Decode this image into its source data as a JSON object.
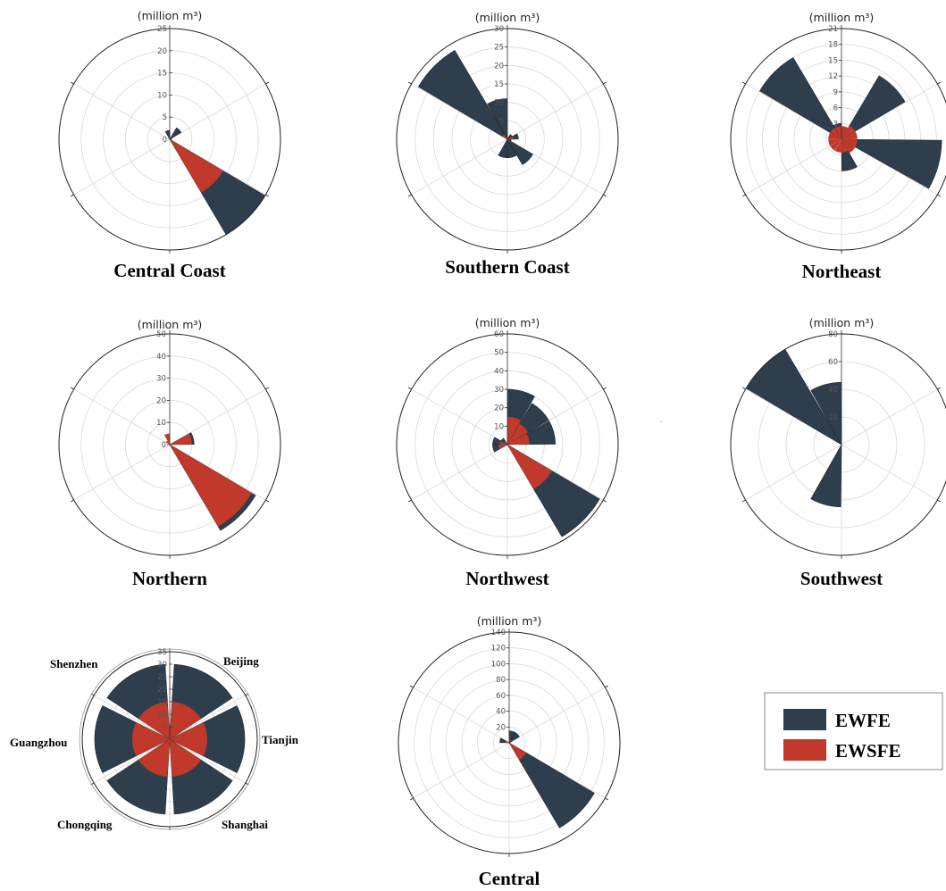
{
  "colors": {
    "ewfe": "#2f3e4d",
    "ewsfe": "#c0392b",
    "grid": "#d9d9d9",
    "frame": "#222222"
  },
  "legend": {
    "items": [
      {
        "label": "EWFE",
        "color": "#2f3e4d"
      },
      {
        "label": "EWSFE",
        "color": "#c0392b"
      }
    ]
  },
  "chart_data": [
    {
      "type": "polar-bar",
      "title": "Central Coast",
      "unit": "(million m³)",
      "rlim": [
        0,
        25
      ],
      "ticks": [
        0,
        5,
        10,
        15,
        20,
        25
      ],
      "series": [
        {
          "name": "EWFE",
          "values": [
            0,
            3,
            0,
            0,
            26,
            0,
            0,
            0,
            0,
            0,
            0,
            2
          ]
        },
        {
          "name": "EWSFE",
          "values": [
            0,
            0,
            0,
            0,
            14,
            0,
            0,
            0,
            0,
            0,
            0,
            0
          ]
        }
      ]
    },
    {
      "type": "polar-bar",
      "title": "Southern Coast",
      "unit": "(million m³)",
      "rlim": [
        0,
        30
      ],
      "ticks": [
        5,
        10,
        15,
        20,
        25,
        30
      ],
      "series": [
        {
          "name": "EWFE",
          "values": [
            0,
            0,
            0,
            0,
            0,
            0,
            0,
            0,
            0,
            0,
            0,
            0
          ]
        },
        {
          "name": "EWFE",
          "values": [
            0,
            1.5,
            3,
            1,
            8,
            5,
            5,
            0,
            0,
            0,
            28,
            11
          ]
        },
        {
          "name": "EWSFE",
          "values": [
            0,
            0,
            1.5,
            0,
            1,
            0,
            0,
            0,
            0,
            0,
            1.5,
            0
          ]
        }
      ]
    },
    {
      "type": "polar-bar",
      "title": "Northeast",
      "unit": "(million m³)",
      "rlim": [
        0,
        21
      ],
      "ticks": [
        3,
        6,
        9,
        12,
        15,
        18,
        21
      ],
      "series": [
        {
          "name": "EWFE",
          "values": [
            0,
            14,
            0,
            19,
            0,
            6,
            0,
            0,
            0,
            0,
            18,
            3
          ]
        },
        {
          "name": "EWSFE",
          "values": [
            2.5,
            3,
            3,
            3,
            3,
            2.5,
            2.5,
            2.5,
            2.5,
            2.5,
            2.5,
            2.5
          ]
        }
      ]
    },
    {
      "type": "polar-bar",
      "title": "Northern",
      "unit": "(million m³)",
      "rlim": [
        0,
        50
      ],
      "ticks": [
        0,
        10,
        20,
        30,
        40,
        50
      ],
      "series": [
        {
          "name": "EWFE",
          "values": [
            0,
            0,
            11,
            0,
            45,
            0,
            0,
            0,
            0,
            0,
            0,
            0
          ]
        },
        {
          "name": "EWSFE",
          "values": [
            0,
            0,
            10,
            0,
            43,
            0,
            0,
            0,
            0,
            0,
            2,
            5
          ]
        }
      ]
    },
    {
      "type": "polar-bar",
      "title": "Northwest",
      "unit": "(million m³)",
      "rlim": [
        0,
        60
      ],
      "ticks": [
        0,
        10,
        20,
        30,
        40,
        50,
        60
      ],
      "series": [
        {
          "name": "EWFE",
          "values": [
            30,
            26,
            26,
            0,
            58,
            0,
            0,
            0,
            8,
            8,
            4,
            0
          ]
        },
        {
          "name": "EWSFE",
          "values": [
            15,
            13,
            12,
            0,
            28,
            0,
            0,
            0,
            5,
            4,
            2,
            0
          ]
        }
      ]
    },
    {
      "type": "polar-bar",
      "title": "Southwest",
      "unit": "(million m³)",
      "rlim": [
        0,
        80
      ],
      "ticks": [
        20,
        40,
        60,
        80
      ],
      "series": [
        {
          "name": "EWFE",
          "values": [
            0,
            0,
            0,
            0,
            0,
            0,
            45,
            0,
            0,
            0,
            80,
            45
          ]
        },
        {
          "name": "EWSFE",
          "values": [
            0,
            0,
            0,
            0,
            0,
            0,
            0,
            0,
            0,
            0,
            0,
            0
          ]
        }
      ]
    },
    {
      "type": "polar-bar",
      "title": "",
      "unit": "",
      "rlim": [
        0,
        35
      ],
      "ticks": [
        5,
        10,
        15,
        20,
        25,
        30,
        35
      ],
      "categories": [
        "Beijing",
        "Tianjin",
        "Shanghai",
        "Chongqing",
        "Guangzhou",
        "Shenzhen"
      ],
      "series": [
        {
          "name": "EWFE",
          "values": [
            30,
            30,
            30,
            30,
            30,
            30
          ]
        },
        {
          "name": "EWSFE",
          "values": [
            15,
            15,
            15,
            15,
            15,
            15
          ]
        }
      ]
    },
    {
      "type": "polar-bar",
      "title": "Central",
      "unit": "(million m³)",
      "rlim": [
        0,
        140
      ],
      "ticks": [
        20,
        40,
        60,
        80,
        100,
        120,
        140
      ],
      "series": [
        {
          "name": "EWFE",
          "values": [
            15,
            15,
            0,
            0,
            125,
            0,
            0,
            0,
            0,
            12,
            0,
            0
          ]
        },
        {
          "name": "EWSFE",
          "values": [
            5,
            0,
            0,
            0,
            25,
            0,
            0,
            0,
            0,
            5,
            0,
            0
          ]
        }
      ]
    }
  ]
}
